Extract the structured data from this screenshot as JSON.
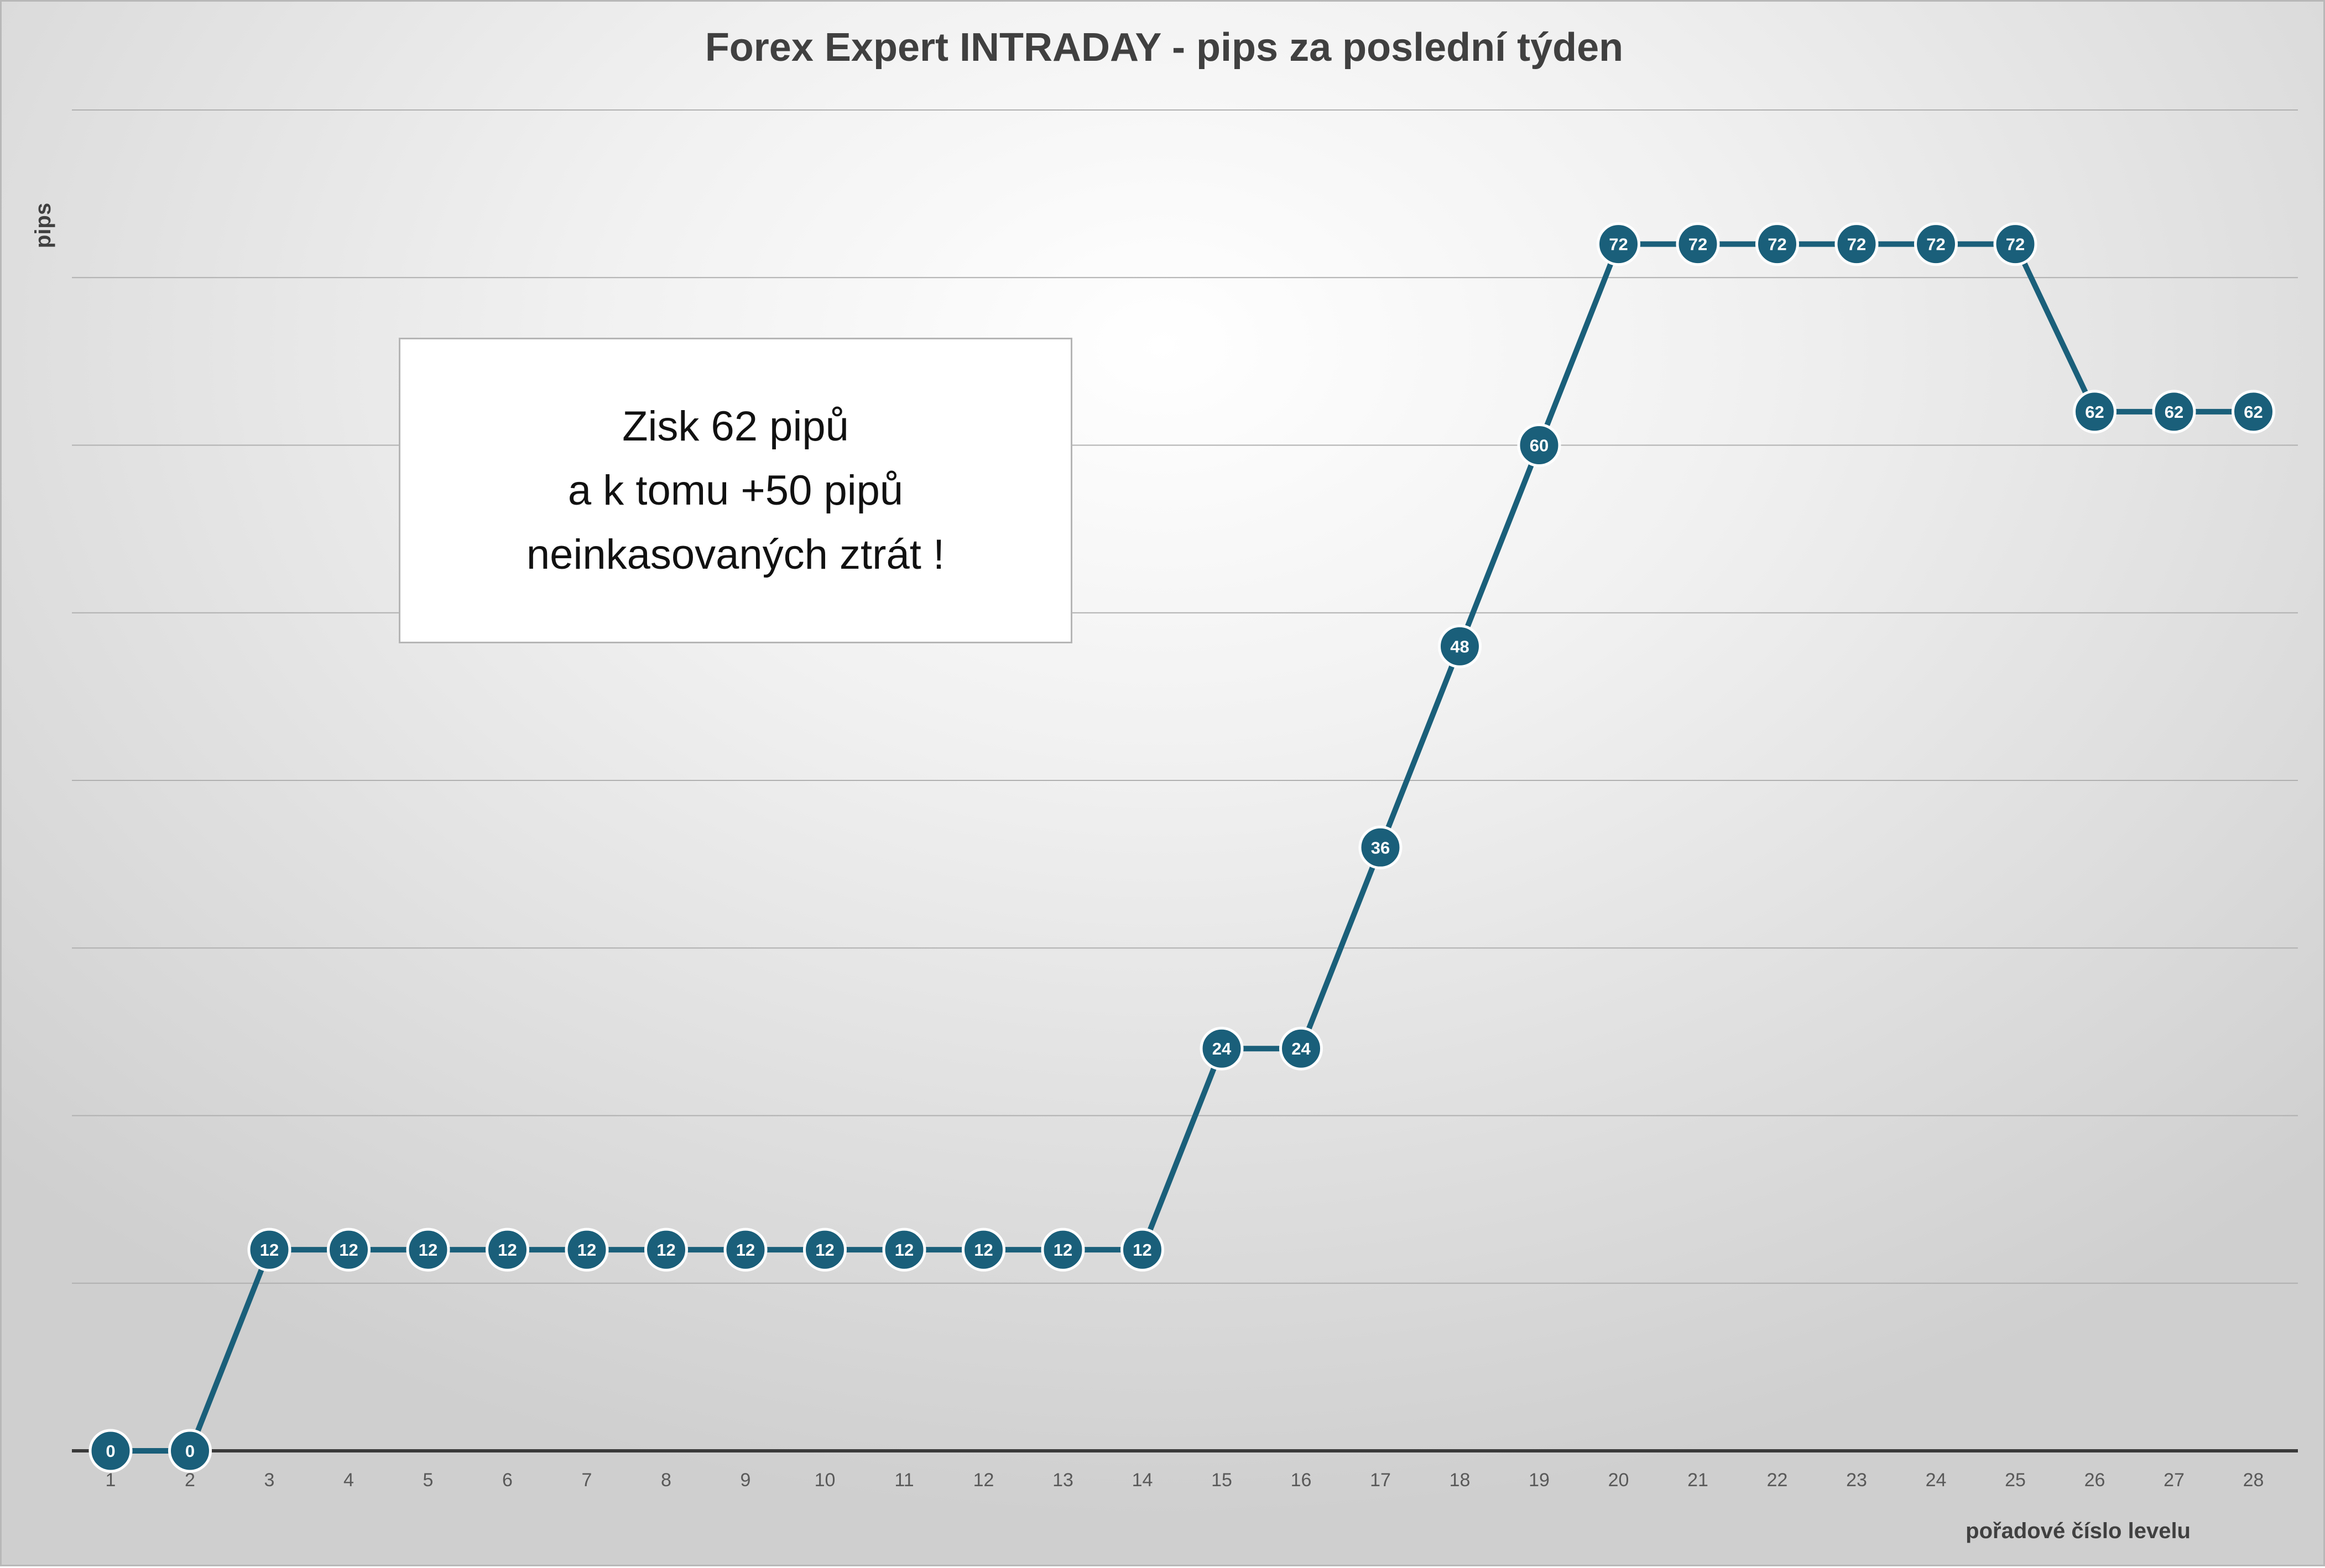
{
  "chart_data": {
    "type": "line",
    "title": "Forex Expert INTRADAY - pips za poslední týden",
    "xlabel": "pořadové číslo levelu",
    "ylabel": "pips",
    "categories": [
      "1",
      "2",
      "3",
      "4",
      "5",
      "6",
      "7",
      "8",
      "9",
      "10",
      "11",
      "12",
      "13",
      "14",
      "15",
      "16",
      "17",
      "18",
      "19",
      "20",
      "21",
      "22",
      "23",
      "24",
      "25",
      "26",
      "27",
      "28"
    ],
    "series": [
      {
        "values": [
          0,
          0,
          12,
          12,
          12,
          12,
          12,
          12,
          12,
          12,
          12,
          12,
          12,
          12,
          24,
          24,
          36,
          48,
          60,
          72,
          72,
          72,
          72,
          72,
          72,
          62,
          62,
          62
        ],
        "color": "#1a5f7a"
      }
    ],
    "ylim": [
      0,
      80
    ],
    "y_gridline_step": 10,
    "y_tick_labels_shown": false,
    "data_labels": true,
    "grid": true,
    "legend": "none",
    "annotation": {
      "lines": [
        "Zisk 62 pipů",
        "a k tomu +50 pipů",
        "neinkasovaných ztrát !"
      ]
    }
  }
}
